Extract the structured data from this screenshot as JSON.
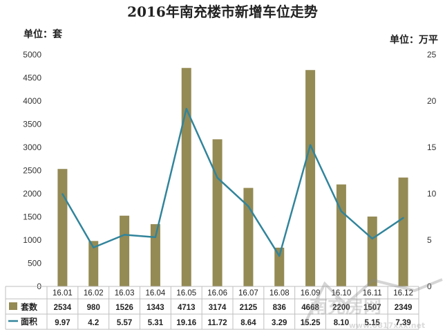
{
  "chart_data": {
    "type": "bar+line",
    "title": "2016年南充楼市新增车位走势",
    "left_unit": "单位：套",
    "right_unit": "单位：万平",
    "categories": [
      "16.01",
      "16.02",
      "16.03",
      "16.04",
      "16.05",
      "16.06",
      "16.07",
      "16.08",
      "16.09",
      "16.10",
      "16.11",
      "16.12"
    ],
    "series": [
      {
        "name": "套数",
        "type": "bar",
        "axis": "left",
        "color": "#948A54",
        "values": [
          2534,
          980,
          1526,
          1343,
          4713,
          3174,
          2125,
          836,
          4668,
          2200,
          1507,
          2349
        ],
        "labels": [
          "2534",
          "980",
          "1526",
          "1343",
          "4713",
          "3174",
          "2125",
          "836",
          "4668",
          "2200",
          "1507",
          "2349"
        ]
      },
      {
        "name": "面积",
        "type": "line",
        "axis": "right",
        "color": "#31849B",
        "values": [
          9.97,
          4.2,
          5.57,
          5.31,
          19.16,
          11.72,
          8.64,
          3.29,
          15.25,
          8.1,
          5.15,
          7.39
        ],
        "labels": [
          "9.97",
          "4.2",
          "5.57",
          "5.31",
          "19.16",
          "11.72",
          "8.64",
          "3.29",
          "15.25",
          "8.10",
          "5.15",
          "7.39"
        ]
      }
    ],
    "ylim_left": [
      0,
      5000
    ],
    "yticks_left": [
      "0",
      "500",
      "1000",
      "1500",
      "2000",
      "2500",
      "3000",
      "3500",
      "4000",
      "4500",
      "5000"
    ],
    "ylim_right": [
      0,
      25
    ],
    "yticks_right": [
      "0",
      "5",
      "10",
      "15",
      "20",
      "25"
    ],
    "grid": false,
    "legend": "data-table-below"
  },
  "watermark": {
    "text": "南充房网",
    "url": "www.0817xxx.net"
  }
}
